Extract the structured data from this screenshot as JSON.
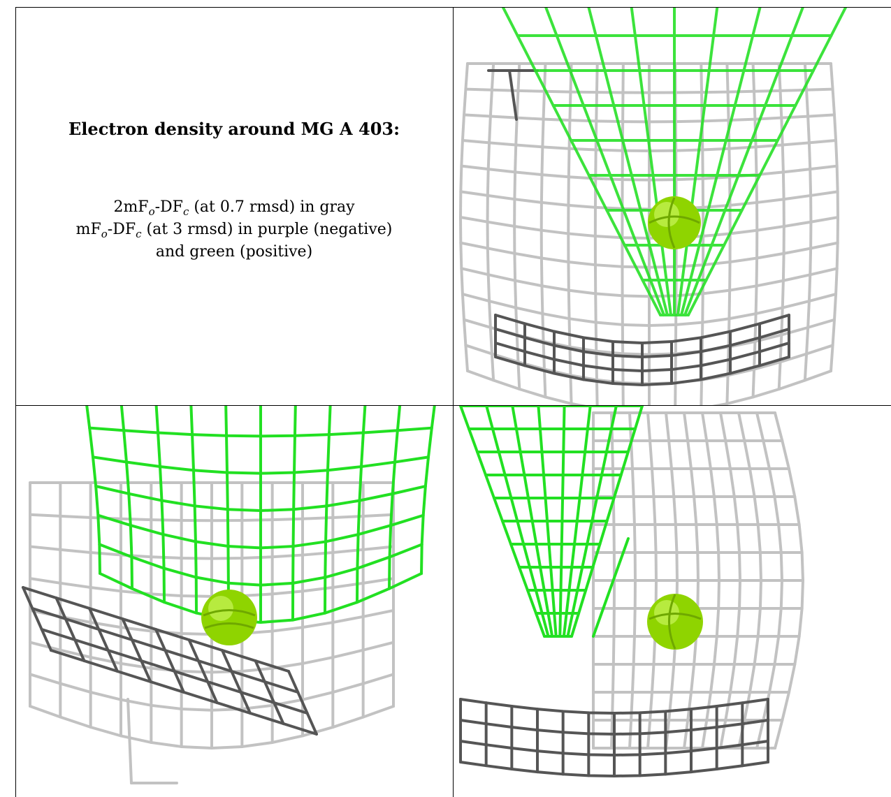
{
  "caption": {
    "title": "Electron density around MG A 403:",
    "line1": {
      "pre": "2mF",
      "sub_o": "o",
      "mid": "-DF",
      "sub_c": "c",
      "post": " (at 0.7 rmsd) in gray"
    },
    "line2": {
      "pre": "mF",
      "sub_o": "o",
      "mid": "-DF",
      "sub_c": "c",
      "post": " (at 3 rmsd) in purple (negative)"
    },
    "line3": "and green (positive)"
  },
  "colors": {
    "gray_mesh": "#b9b9b9",
    "dark_mesh": "#4a4a4a",
    "green_mesh": "#22e322",
    "ion": "#8fd400",
    "ion_highlight": "#c8f55a",
    "grid_rule": "#000000"
  },
  "panels": [
    {
      "name": "view-1",
      "description_icon": "mesh-view-icon"
    },
    {
      "name": "view-2",
      "description_icon": "mesh-view-icon"
    },
    {
      "name": "view-3",
      "description_icon": "mesh-view-icon"
    }
  ]
}
